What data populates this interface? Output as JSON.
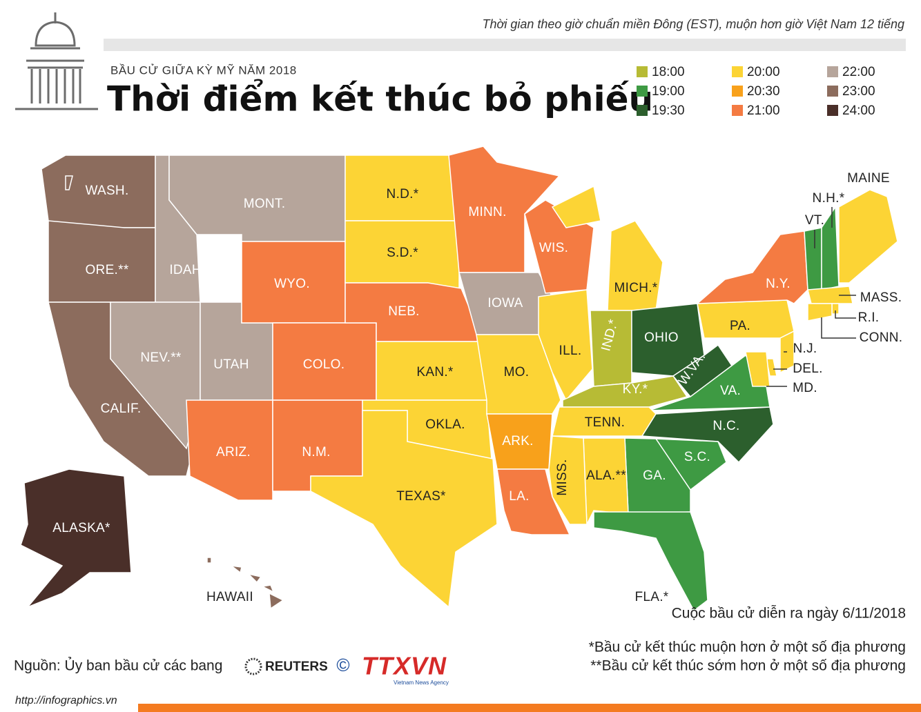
{
  "header": {
    "note": "Thời gian theo giờ chuẩn miền Đông (EST), muộn hơn giờ Việt Nam 12 tiếng",
    "kicker": "BẦU CỬ GIỮA KỲ MỸ NĂM 2018",
    "title": "Thời điểm kết thúc bỏ phiếu"
  },
  "legend": [
    {
      "label": "18:00",
      "color": "#b7bb35"
    },
    {
      "label": "19:00",
      "color": "#3e9a43"
    },
    {
      "label": "19:30",
      "color": "#2c5f2d"
    },
    {
      "label": "20:00",
      "color": "#fcd435"
    },
    {
      "label": "20:30",
      "color": "#f8a11b"
    },
    {
      "label": "21:00",
      "color": "#f47b42"
    },
    {
      "label": "22:00",
      "color": "#b6a59b"
    },
    {
      "label": "23:00",
      "color": "#8c6c5d"
    },
    {
      "label": "24:00",
      "color": "#4a2f29"
    }
  ],
  "states": [
    {
      "label": "WASH.",
      "time": "23:00"
    },
    {
      "label": "ORE.**",
      "time": "23:00"
    },
    {
      "label": "CALIF.",
      "time": "23:00"
    },
    {
      "label": "IDAHO*",
      "time": "22:00"
    },
    {
      "label": "MONT.",
      "time": "22:00"
    },
    {
      "label": "NEV.**",
      "time": "22:00"
    },
    {
      "label": "UTAH",
      "time": "22:00"
    },
    {
      "label": "WYO.",
      "time": "21:00"
    },
    {
      "label": "COLO.",
      "time": "21:00"
    },
    {
      "label": "ARIZ.",
      "time": "21:00"
    },
    {
      "label": "N.M.",
      "time": "21:00"
    },
    {
      "label": "N.D.*",
      "time": "20:00"
    },
    {
      "label": "S.D.*",
      "time": "20:00"
    },
    {
      "label": "NEB.",
      "time": "21:00"
    },
    {
      "label": "KAN.*",
      "time": "20:00"
    },
    {
      "label": "OKLA.",
      "time": "20:00"
    },
    {
      "label": "TEXAS*",
      "time": "20:00"
    },
    {
      "label": "MINN.",
      "time": "21:00"
    },
    {
      "label": "IOWA",
      "time": "22:00"
    },
    {
      "label": "MO.",
      "time": "20:00"
    },
    {
      "label": "ARK.",
      "time": "20:30"
    },
    {
      "label": "LA.",
      "time": "21:00"
    },
    {
      "label": "WIS.",
      "time": "21:00"
    },
    {
      "label": "ILL.",
      "time": "20:00"
    },
    {
      "label": "MICH.*",
      "time": "20:00"
    },
    {
      "label": "IND.*",
      "time": "18:00"
    },
    {
      "label": "OHIO",
      "time": "19:30"
    },
    {
      "label": "KY.*",
      "time": "18:00"
    },
    {
      "label": "W.VA.",
      "time": "19:30"
    },
    {
      "label": "VA.",
      "time": "19:00"
    },
    {
      "label": "TENN.",
      "time": "20:00"
    },
    {
      "label": "N.C.",
      "time": "19:30"
    },
    {
      "label": "S.C.",
      "time": "19:00"
    },
    {
      "label": "GA.",
      "time": "19:00"
    },
    {
      "label": "ALA.**",
      "time": "20:00"
    },
    {
      "label": "MISS.",
      "time": "20:00"
    },
    {
      "label": "FLA.*",
      "time": "19:00"
    },
    {
      "label": "PA.",
      "time": "20:00"
    },
    {
      "label": "N.Y.",
      "time": "21:00"
    },
    {
      "label": "VT.",
      "time": "19:00"
    },
    {
      "label": "N.H.*",
      "time": "19:00"
    },
    {
      "label": "MAINE",
      "time": "20:00"
    },
    {
      "label": "MASS.",
      "time": "20:00"
    },
    {
      "label": "R.I.",
      "time": "20:00"
    },
    {
      "label": "CONN.",
      "time": "20:00"
    },
    {
      "label": "N.J.",
      "time": "20:00"
    },
    {
      "label": "DEL.",
      "time": "20:00"
    },
    {
      "label": "MD.",
      "time": "20:00"
    },
    {
      "label": "ALASKA*",
      "time": "24:00"
    },
    {
      "label": "HAWAII",
      "time": "23:00"
    }
  ],
  "footer": {
    "date": "Cuộc bầu cử diễn ra ngày 6/11/2018",
    "note1": "*Bầu cử kết thúc muộn hơn ở một số địa phương",
    "note2": "**Bầu cử kết thúc sớm hơn ở một số địa phương",
    "source": "Nguồn: Ủy ban bầu cử các bang",
    "reuters": "REUTERS",
    "copyright": "©",
    "ttxvn": "TTXVN",
    "ttxvn_sub": "Vietnam News Agency",
    "url": "http://infographics.vn"
  }
}
